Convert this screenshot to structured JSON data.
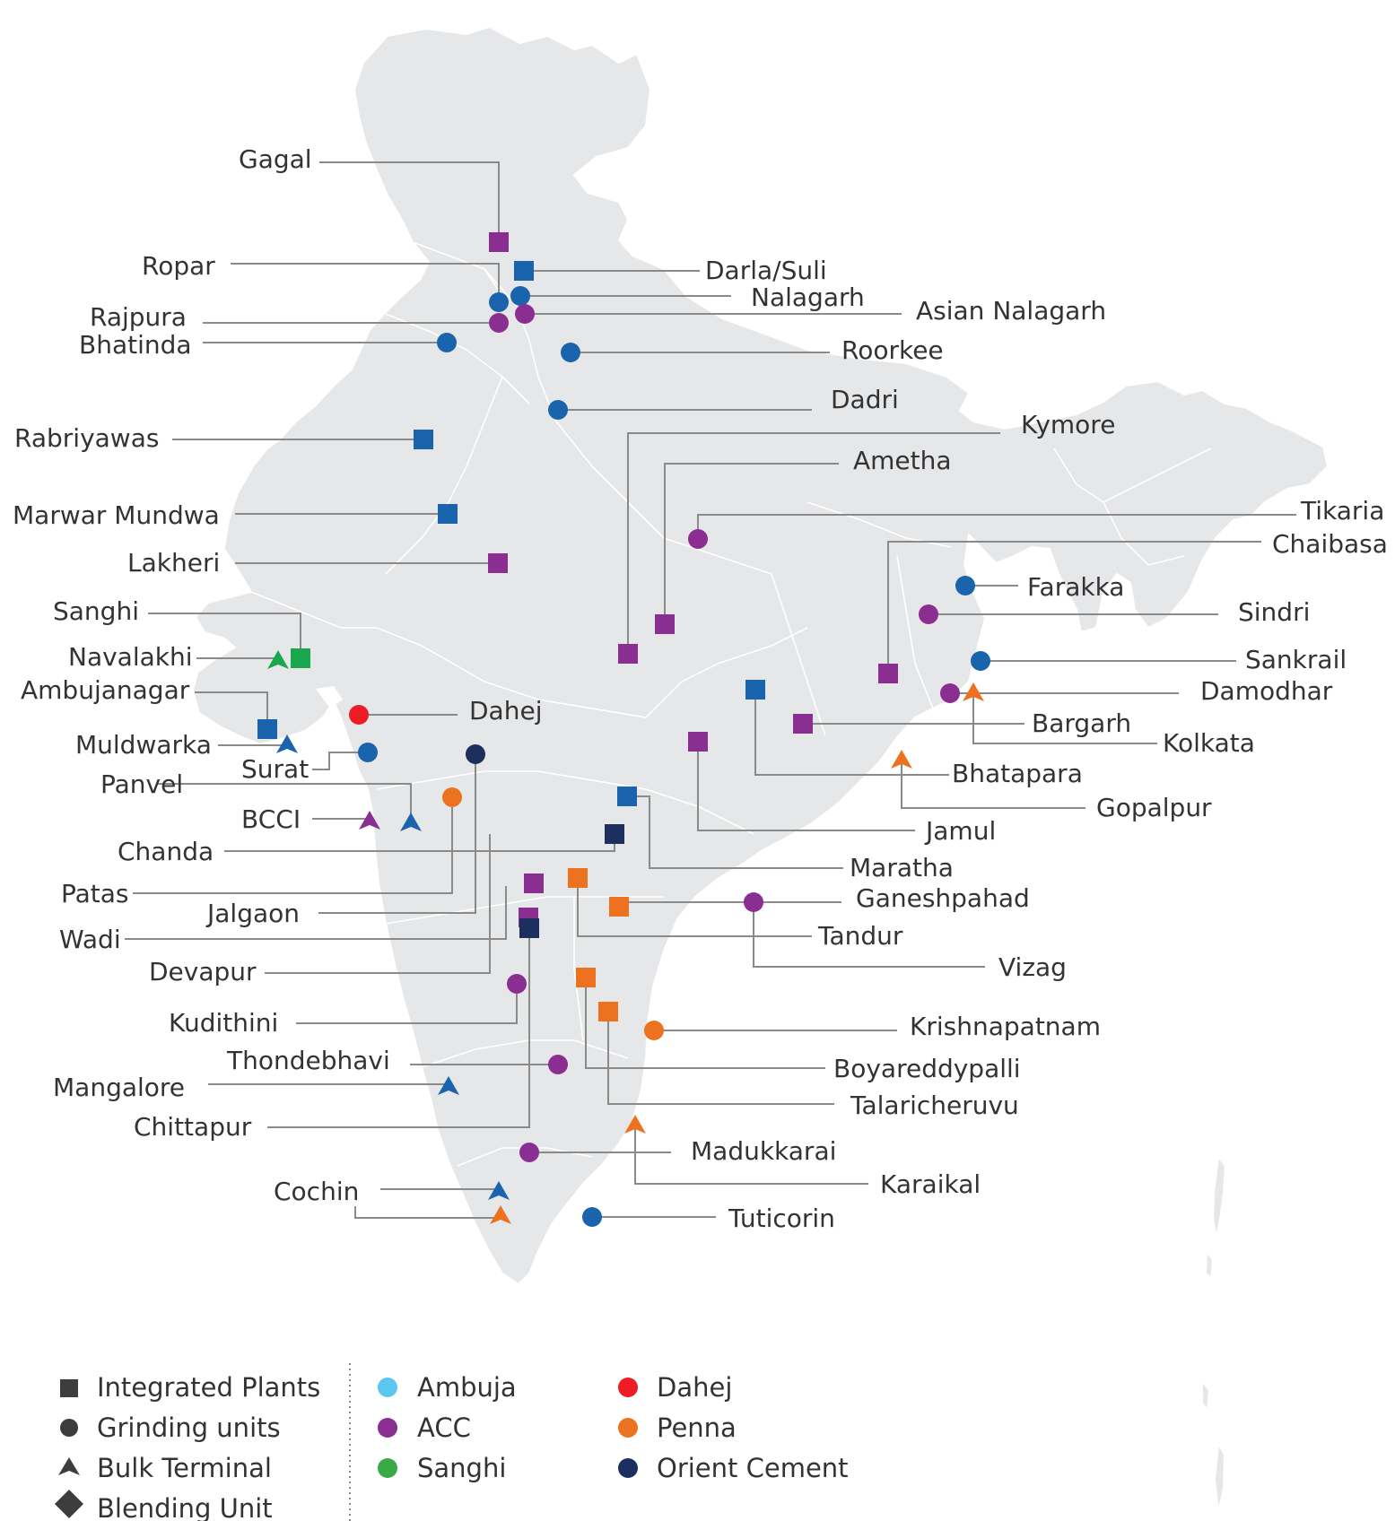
{
  "colors": {
    "Ambuja": "#1a63ad",
    "ACC": "#8b2e91",
    "Sanghi": "#1aa84f",
    "Dahej": "#ee1c25",
    "Penna": "#ed7220",
    "Orient Cement": "#1c2f5e",
    "legend_Ambuja": "#5bc6f0",
    "legend_ACC": "#8b2e91",
    "legend_Sanghi": "#3ba948",
    "legend_Dahej": "#ee1c25",
    "legend_Penna": "#ed7220",
    "legend_Orient": "#1c2f5e",
    "legend_type_icon": "#3d3d3d"
  },
  "sites": [
    {
      "name": "Gagal",
      "type": "square",
      "company": "ACC"
    },
    {
      "name": "Ropar",
      "type": "circle",
      "company": "Ambuja"
    },
    {
      "name": "Darla/Suli",
      "type": "square",
      "company": "Ambuja"
    },
    {
      "name": "Nalagarh",
      "type": "circle",
      "company": "Ambuja"
    },
    {
      "name": "Asian Nalagarh",
      "type": "circle",
      "company": "ACC"
    },
    {
      "name": "Rajpura",
      "type": "circle",
      "company": "ACC"
    },
    {
      "name": "Bhatinda",
      "type": "circle",
      "company": "Ambuja"
    },
    {
      "name": "Roorkee",
      "type": "circle",
      "company": "Ambuja"
    },
    {
      "name": "Dadri",
      "type": "circle",
      "company": "Ambuja"
    },
    {
      "name": "Kymore",
      "type": "square",
      "company": "ACC"
    },
    {
      "name": "Rabriyawas",
      "type": "square",
      "company": "Ambuja"
    },
    {
      "name": "Ametha",
      "type": "square",
      "company": "ACC"
    },
    {
      "name": "Tikaria",
      "type": "circle",
      "company": "ACC"
    },
    {
      "name": "Marwar Mundwa",
      "type": "square",
      "company": "Ambuja"
    },
    {
      "name": "Chaibasa",
      "type": "square",
      "company": "ACC"
    },
    {
      "name": "Lakheri",
      "type": "square",
      "company": "ACC"
    },
    {
      "name": "Farakka",
      "type": "circle",
      "company": "Ambuja"
    },
    {
      "name": "Sanghi",
      "type": "square",
      "company": "Sanghi"
    },
    {
      "name": "Sindri",
      "type": "circle",
      "company": "ACC"
    },
    {
      "name": "Navalakhi",
      "type": "triangle",
      "company": "Sanghi"
    },
    {
      "name": "Sankrail",
      "type": "circle",
      "company": "Ambuja"
    },
    {
      "name": "Ambujanagar",
      "type": "square",
      "company": "Ambuja"
    },
    {
      "name": "Damodhar",
      "type": "circle",
      "company": "ACC"
    },
    {
      "name": "Dahej",
      "type": "circle",
      "company": "Dahej"
    },
    {
      "name": "Bargarh",
      "type": "square",
      "company": "ACC"
    },
    {
      "name": "Kolkata",
      "type": "triangle",
      "company": "Penna"
    },
    {
      "name": "Muldwarka",
      "type": "triangle",
      "company": "Ambuja"
    },
    {
      "name": "Surat",
      "type": "circle",
      "company": "Ambuja"
    },
    {
      "name": "Bhatapara",
      "type": "square",
      "company": "Ambuja"
    },
    {
      "name": "Panvel",
      "type": "triangle",
      "company": "Ambuja"
    },
    {
      "name": "Gopalpur",
      "type": "triangle",
      "company": "Penna"
    },
    {
      "name": "BCCI",
      "type": "triangle",
      "company": "ACC"
    },
    {
      "name": "Jamul",
      "type": "square",
      "company": "ACC"
    },
    {
      "name": "Chanda",
      "type": "square",
      "company": "Orient Cement"
    },
    {
      "name": "Maratha",
      "type": "square",
      "company": "Ambuja"
    },
    {
      "name": "Patas",
      "type": "circle",
      "company": "Penna"
    },
    {
      "name": "Ganeshpahad",
      "type": "square",
      "company": "Penna"
    },
    {
      "name": "Jalgaon",
      "type": "circle",
      "company": "Orient Cement"
    },
    {
      "name": "Tandur",
      "type": "square",
      "company": "Penna"
    },
    {
      "name": "Wadi",
      "type": "square",
      "company": "ACC"
    },
    {
      "name": "Vizag",
      "type": "circle",
      "company": "ACC"
    },
    {
      "name": "Devapur",
      "type": "square",
      "company": "ACC"
    },
    {
      "name": "Kudithini",
      "type": "circle",
      "company": "ACC"
    },
    {
      "name": "Krishnapatnam",
      "type": "circle",
      "company": "Penna"
    },
    {
      "name": "Thondebhavi",
      "type": "circle",
      "company": "ACC"
    },
    {
      "name": "Boyareddypalli",
      "type": "square",
      "company": "Penna"
    },
    {
      "name": "Mangalore",
      "type": "triangle",
      "company": "Ambuja"
    },
    {
      "name": "Talaricheruvu",
      "type": "square",
      "company": "Penna"
    },
    {
      "name": "Chittapur",
      "type": "square",
      "company": "Orient Cement"
    },
    {
      "name": "Madukkarai",
      "type": "circle",
      "company": "ACC"
    },
    {
      "name": "Karaikal",
      "type": "triangle",
      "company": "Penna"
    },
    {
      "name": "Cochin",
      "type": "triangle",
      "company": "Ambuja"
    },
    {
      "name": "Cochin (Penna)",
      "label": "",
      "type": "triangle",
      "company": "Penna"
    },
    {
      "name": "Tuticorin",
      "type": "circle",
      "company": "Ambuja"
    }
  ],
  "legend": {
    "types": [
      {
        "label": "Integrated Plants",
        "icon": "square-icon"
      },
      {
        "label": "Grinding units",
        "icon": "circle-icon"
      },
      {
        "label": "Bulk Terminal",
        "icon": "triangle-icon"
      },
      {
        "label": "Blending Unit",
        "icon": "diamond-icon"
      }
    ],
    "companies_col1": [
      {
        "label": "Ambuja",
        "color_key": "legend_Ambuja"
      },
      {
        "label": "ACC",
        "color_key": "legend_ACC"
      },
      {
        "label": "Sanghi",
        "color_key": "legend_Sanghi"
      }
    ],
    "companies_col2": [
      {
        "label": "Dahej",
        "color_key": "legend_Dahej"
      },
      {
        "label": "Penna",
        "color_key": "legend_Penna"
      },
      {
        "label": "Orient Cement",
        "color_key": "legend_Orient"
      }
    ]
  }
}
